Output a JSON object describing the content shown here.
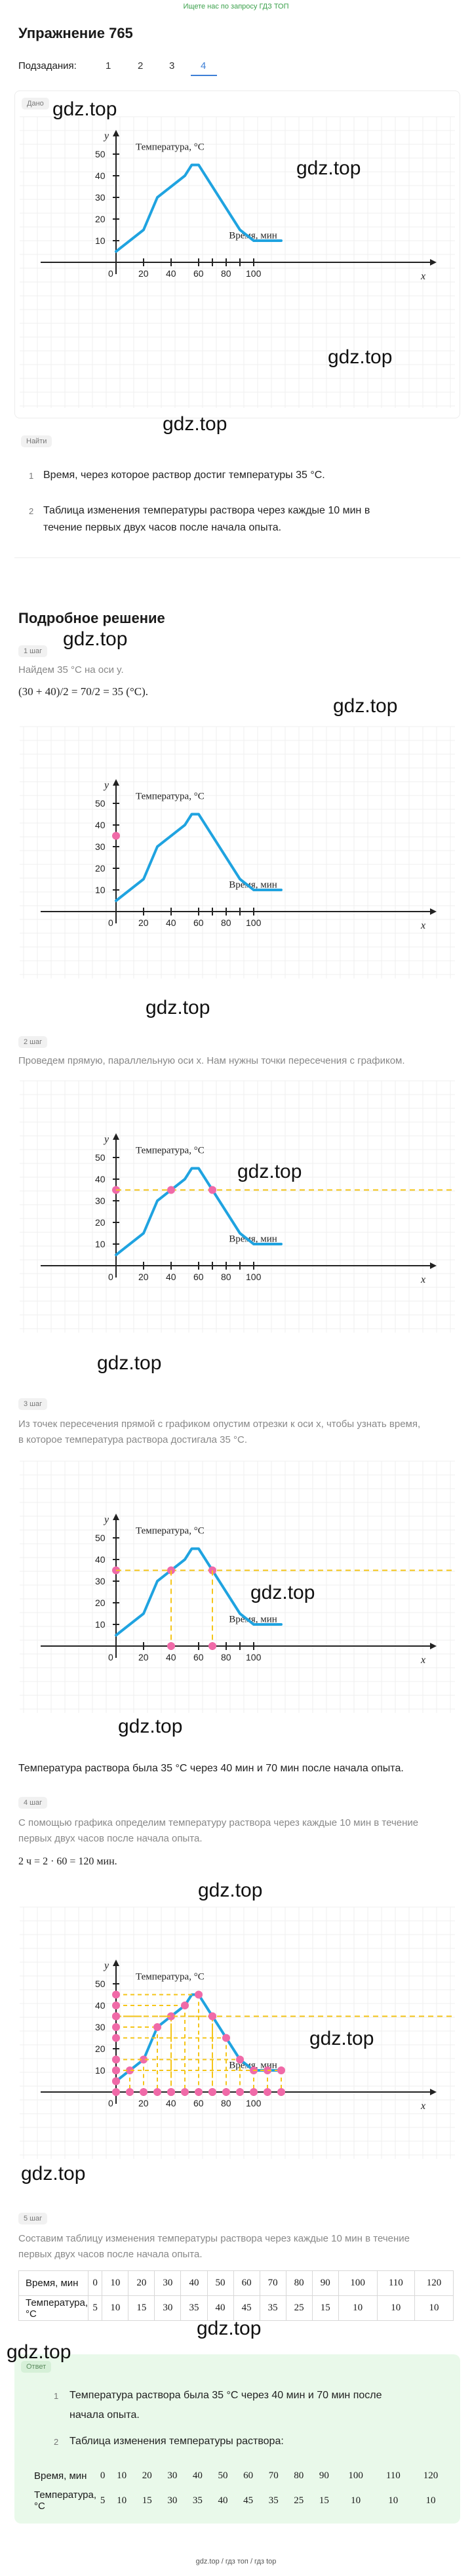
{
  "top_link": "Ищете нас по запросу ГДЗ ТОП",
  "title": "Упражнение 765",
  "subtasks": {
    "label": "Подзадания:",
    "items": [
      "1",
      "2",
      "3",
      "4"
    ],
    "active": "4"
  },
  "dano_badge": "Дано",
  "watermark": "gdz.top",
  "graph": {
    "y_label": "y",
    "x_label": "x",
    "temp_label": "Температура, °C",
    "time_label": "Время, мин",
    "y_ticks": [
      "50",
      "40",
      "30",
      "20",
      "10"
    ],
    "x_ticks": [
      "0",
      "20",
      "40",
      "60",
      "80",
      "100"
    ]
  },
  "naiti_badge": "Найти",
  "tasks": [
    {
      "num": "1",
      "text": "Время, через которое раствор достиг температуры 35 °C."
    },
    {
      "num": "2",
      "text_line1": "Таблица изменения температуры раствора через каждые 10 мин в",
      "text_line2": "течение первых двух часов после начала опыта."
    }
  ],
  "solution_title": "Подробное решение",
  "steps": {
    "s1": {
      "badge": "1 шаг",
      "text": "Найдем 35 °C на оси y.",
      "formula": "(30 + 40)/2 = 70/2 = 35 (°C)."
    },
    "s2": {
      "badge": "2 шаг",
      "text": "Проведем прямую, параллельную оси x. Нам нужны точки пересечения с графиком."
    },
    "s3": {
      "badge": "3 шаг",
      "text_line1": "Из точек пересечения прямой с графиком опустим отрезки к оси x, чтобы узнать время,",
      "text_line2": "в которое температура раствора достигала 35 °C.",
      "result": "Температура раствора была 35 °C через 40 мин и 70 мин после начала опыта."
    },
    "s4": {
      "badge": "4 шаг",
      "text_line1": "С помощью графика определим температуру раствора через каждые 10 мин в течение",
      "text_line2": "первых двух часов после начала опыта.",
      "formula": "2 ч = 2 · 60 = 120 мин."
    },
    "s5": {
      "badge": "5 шаг",
      "text_line1": "Составим таблицу изменения температуры раствора через каждые 10 мин в течение",
      "text_line2": "первых двух часов после начала опыта."
    }
  },
  "table": {
    "row1_label": "Время, мин",
    "row1": [
      "0",
      "10",
      "20",
      "30",
      "40",
      "50",
      "60",
      "70",
      "80",
      "90",
      "100",
      "110",
      "120"
    ],
    "row2_label": "Температура, °C",
    "row2": [
      "5",
      "10",
      "15",
      "30",
      "35",
      "40",
      "45",
      "35",
      "25",
      "15",
      "10",
      "10",
      "10"
    ]
  },
  "answer": {
    "badge": "Ответ",
    "item1_line1": "Температура раствора была 35 °C через 40 мин и 70 мин после",
    "item1_line2": "начала опыта.",
    "item2": "Таблица изменения температуры раствора:"
  },
  "footer": "gdz.top  /  гдз топ  /  гдз top",
  "colors": {
    "curve": "#1fa3e0",
    "dashed": "#f5c518",
    "points": "#f06aa8",
    "accent": "#3d7fd6",
    "answer_bg": "#e9f9ea"
  }
}
